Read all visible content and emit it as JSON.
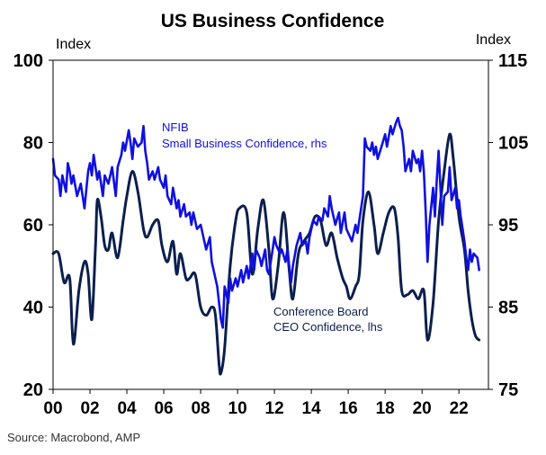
{
  "chart_data": {
    "type": "line",
    "title": "US Business Confidence",
    "left_axis": {
      "label": "Index",
      "range": [
        20,
        100
      ],
      "ticks": [
        20,
        40,
        60,
        80,
        100
      ]
    },
    "right_axis": {
      "label": "Index",
      "range": [
        75,
        115
      ],
      "ticks": [
        75,
        85,
        95,
        105,
        115
      ]
    },
    "x_axis": {
      "range": [
        2000,
        2023.6
      ],
      "ticks": [
        {
          "x": 2000,
          "label": "00"
        },
        {
          "x": 2002,
          "label": "02"
        },
        {
          "x": 2004,
          "label": "04"
        },
        {
          "x": 2006,
          "label": "06"
        },
        {
          "x": 2008,
          "label": "08"
        },
        {
          "x": 2010,
          "label": "10"
        },
        {
          "x": 2012,
          "label": "12"
        },
        {
          "x": 2014,
          "label": "14"
        },
        {
          "x": 2016,
          "label": "16"
        },
        {
          "x": 2018,
          "label": "18"
        },
        {
          "x": 2020,
          "label": "20"
        },
        {
          "x": 2022,
          "label": "22"
        }
      ]
    },
    "grid": false,
    "series": [
      {
        "name": "Conference Board CEO Confidence, lhs",
        "label_lines": [
          "Conference Board",
          "CEO Confidence, lhs"
        ],
        "axis": "left",
        "color": "#0b1f4d",
        "points": [
          [
            2000.0,
            53
          ],
          [
            2000.3,
            53
          ],
          [
            2000.6,
            46
          ],
          [
            2000.9,
            47
          ],
          [
            2001.1,
            31
          ],
          [
            2001.4,
            44
          ],
          [
            2001.7,
            51
          ],
          [
            2001.9,
            48
          ],
          [
            2002.1,
            37
          ],
          [
            2002.3,
            55
          ],
          [
            2002.4,
            66
          ],
          [
            2002.6,
            62
          ],
          [
            2002.8,
            55
          ],
          [
            2003.0,
            54
          ],
          [
            2003.2,
            58
          ],
          [
            2003.5,
            52
          ],
          [
            2003.8,
            61
          ],
          [
            2004.0,
            67
          ],
          [
            2004.3,
            73
          ],
          [
            2004.6,
            68
          ],
          [
            2004.9,
            59
          ],
          [
            2005.1,
            57
          ],
          [
            2005.4,
            60
          ],
          [
            2005.7,
            61
          ],
          [
            2005.9,
            55
          ],
          [
            2006.2,
            51
          ],
          [
            2006.5,
            56
          ],
          [
            2006.7,
            48
          ],
          [
            2006.9,
            53
          ],
          [
            2007.2,
            47
          ],
          [
            2007.4,
            47
          ],
          [
            2007.7,
            48
          ],
          [
            2008.0,
            40
          ],
          [
            2008.3,
            38
          ],
          [
            2008.6,
            40
          ],
          [
            2008.8,
            38
          ],
          [
            2009.0,
            26
          ],
          [
            2009.1,
            24
          ],
          [
            2009.3,
            30
          ],
          [
            2009.6,
            50
          ],
          [
            2009.9,
            61
          ],
          [
            2010.1,
            64
          ],
          [
            2010.5,
            63
          ],
          [
            2010.8,
            48
          ],
          [
            2011.1,
            59
          ],
          [
            2011.4,
            66
          ],
          [
            2011.7,
            54
          ],
          [
            2011.9,
            42
          ],
          [
            2012.2,
            50
          ],
          [
            2012.5,
            63
          ],
          [
            2012.8,
            49
          ],
          [
            2013.0,
            42
          ],
          [
            2013.3,
            53
          ],
          [
            2013.6,
            56
          ],
          [
            2013.9,
            58
          ],
          [
            2014.2,
            62
          ],
          [
            2014.5,
            61
          ],
          [
            2014.8,
            55
          ],
          [
            2015.1,
            58
          ],
          [
            2015.4,
            52
          ],
          [
            2015.7,
            47
          ],
          [
            2015.9,
            45
          ],
          [
            2016.1,
            42
          ],
          [
            2016.4,
            45
          ],
          [
            2016.6,
            48
          ],
          [
            2016.8,
            61
          ],
          [
            2017.1,
            68
          ],
          [
            2017.4,
            60
          ],
          [
            2017.6,
            53
          ],
          [
            2017.9,
            58
          ],
          [
            2018.2,
            63
          ],
          [
            2018.5,
            64
          ],
          [
            2018.7,
            57
          ],
          [
            2018.9,
            44
          ],
          [
            2019.2,
            43
          ],
          [
            2019.5,
            44
          ],
          [
            2019.8,
            42
          ],
          [
            2020.1,
            44
          ],
          [
            2020.3,
            32
          ],
          [
            2020.6,
            41
          ],
          [
            2020.9,
            61
          ],
          [
            2021.2,
            73
          ],
          [
            2021.5,
            82
          ],
          [
            2021.7,
            76
          ],
          [
            2022.0,
            62
          ],
          [
            2022.3,
            54
          ],
          [
            2022.5,
            44
          ],
          [
            2022.7,
            37
          ],
          [
            2022.9,
            33
          ],
          [
            2023.1,
            32
          ]
        ]
      },
      {
        "name": "NFIB Small Business Confidence, rhs",
        "label_lines": [
          "NFIB",
          "Small Business Confidence, rhs"
        ],
        "axis": "right",
        "color": "#1010e0",
        "points": [
          [
            2000.0,
            103.0
          ],
          [
            2000.1,
            101.0
          ],
          [
            2000.3,
            100.5
          ],
          [
            2000.4,
            98.5
          ],
          [
            2000.5,
            101.0
          ],
          [
            2000.7,
            99.0
          ],
          [
            2000.8,
            102.5
          ],
          [
            2000.9,
            101.5
          ],
          [
            2001.0,
            100.0
          ],
          [
            2001.1,
            101.0
          ],
          [
            2001.3,
            98.5
          ],
          [
            2001.5,
            100.0
          ],
          [
            2001.7,
            97.0
          ],
          [
            2001.9,
            101.5
          ],
          [
            2002.0,
            102.5
          ],
          [
            2002.1,
            101.0
          ],
          [
            2002.2,
            103.5
          ],
          [
            2002.4,
            100.5
          ],
          [
            2002.5,
            101.5
          ],
          [
            2002.7,
            98.5
          ],
          [
            2002.8,
            101.0
          ],
          [
            2003.0,
            100.0
          ],
          [
            2003.2,
            102.0
          ],
          [
            2003.4,
            98.5
          ],
          [
            2003.5,
            102.0
          ],
          [
            2003.7,
            103.5
          ],
          [
            2003.8,
            105.0
          ],
          [
            2003.9,
            104.0
          ],
          [
            2004.1,
            106.5
          ],
          [
            2004.2,
            105.0
          ],
          [
            2004.3,
            103.0
          ],
          [
            2004.4,
            105.5
          ],
          [
            2004.6,
            104.5
          ],
          [
            2004.8,
            105.0
          ],
          [
            2004.9,
            107.0
          ],
          [
            2005.0,
            104.0
          ],
          [
            2005.1,
            102.5
          ],
          [
            2005.2,
            100.5
          ],
          [
            2005.4,
            101.5
          ],
          [
            2005.5,
            100.5
          ],
          [
            2005.7,
            102.0
          ],
          [
            2005.8,
            100.5
          ],
          [
            2006.0,
            99.5
          ],
          [
            2006.1,
            101.0
          ],
          [
            2006.2,
            98.5
          ],
          [
            2006.4,
            97.5
          ],
          [
            2006.5,
            99.5
          ],
          [
            2006.7,
            97.0
          ],
          [
            2006.8,
            98.0
          ],
          [
            2006.9,
            96.0
          ],
          [
            2007.1,
            97.5
          ],
          [
            2007.2,
            96.0
          ],
          [
            2007.4,
            96.5
          ],
          [
            2007.5,
            95.0
          ],
          [
            2007.6,
            96.5
          ],
          [
            2007.8,
            94.5
          ],
          [
            2008.0,
            95.0
          ],
          [
            2008.1,
            94.0
          ],
          [
            2008.3,
            92.0
          ],
          [
            2008.5,
            93.5
          ],
          [
            2008.6,
            90.5
          ],
          [
            2008.8,
            88.5
          ],
          [
            2008.9,
            87.5
          ],
          [
            2009.1,
            83.5
          ],
          [
            2009.2,
            82.5
          ],
          [
            2009.3,
            87.5
          ],
          [
            2009.5,
            85.5
          ],
          [
            2009.6,
            88.5
          ],
          [
            2009.7,
            87.0
          ],
          [
            2009.9,
            88.5
          ],
          [
            2010.0,
            87.5
          ],
          [
            2010.2,
            89.5
          ],
          [
            2010.3,
            88.0
          ],
          [
            2010.5,
            90.0
          ],
          [
            2010.6,
            88.5
          ],
          [
            2010.8,
            91.5
          ],
          [
            2010.9,
            89.5
          ],
          [
            2011.0,
            92.0
          ],
          [
            2011.2,
            91.0
          ],
          [
            2011.3,
            90.0
          ],
          [
            2011.5,
            92.0
          ],
          [
            2011.6,
            89.5
          ],
          [
            2011.7,
            89.0
          ],
          [
            2011.9,
            92.0
          ],
          [
            2012.0,
            93.5
          ],
          [
            2012.1,
            92.5
          ],
          [
            2012.3,
            91.5
          ],
          [
            2012.4,
            92.0
          ],
          [
            2012.6,
            90.5
          ],
          [
            2012.7,
            92.0
          ],
          [
            2012.9,
            88.0
          ],
          [
            2013.0,
            90.0
          ],
          [
            2013.2,
            92.5
          ],
          [
            2013.4,
            94.0
          ],
          [
            2013.5,
            92.5
          ],
          [
            2013.7,
            93.0
          ],
          [
            2013.8,
            91.5
          ],
          [
            2013.9,
            93.5
          ],
          [
            2014.1,
            95.5
          ],
          [
            2014.3,
            95.0
          ],
          [
            2014.4,
            96.0
          ],
          [
            2014.6,
            95.5
          ],
          [
            2014.7,
            97.0
          ],
          [
            2014.9,
            96.0
          ],
          [
            2015.0,
            98.5
          ],
          [
            2015.1,
            97.0
          ],
          [
            2015.3,
            95.0
          ],
          [
            2015.5,
            96.5
          ],
          [
            2015.6,
            94.0
          ],
          [
            2015.8,
            96.5
          ],
          [
            2015.9,
            94.5
          ],
          [
            2016.1,
            93.5
          ],
          [
            2016.2,
            93.0
          ],
          [
            2016.4,
            95.0
          ],
          [
            2016.5,
            94.0
          ],
          [
            2016.6,
            95.5
          ],
          [
            2016.8,
            98.5
          ],
          [
            2016.9,
            105.5
          ],
          [
            2017.0,
            104.5
          ],
          [
            2017.2,
            104.0
          ],
          [
            2017.3,
            105.0
          ],
          [
            2017.4,
            103.5
          ],
          [
            2017.5,
            104.5
          ],
          [
            2017.6,
            103.0
          ],
          [
            2017.8,
            104.5
          ],
          [
            2018.0,
            106.0
          ],
          [
            2018.1,
            104.5
          ],
          [
            2018.3,
            107.0
          ],
          [
            2018.4,
            106.0
          ],
          [
            2018.6,
            107.5
          ],
          [
            2018.7,
            108.0
          ],
          [
            2018.8,
            107.0
          ],
          [
            2018.9,
            106.5
          ],
          [
            2019.0,
            104.5
          ],
          [
            2019.1,
            101.5
          ],
          [
            2019.3,
            103.0
          ],
          [
            2019.4,
            101.5
          ],
          [
            2019.5,
            104.0
          ],
          [
            2019.7,
            102.5
          ],
          [
            2019.8,
            103.0
          ],
          [
            2019.9,
            101.5
          ],
          [
            2020.0,
            104.0
          ],
          [
            2020.1,
            101.5
          ],
          [
            2020.2,
            96.5
          ],
          [
            2020.3,
            90.5
          ],
          [
            2020.4,
            95.0
          ],
          [
            2020.6,
            99.5
          ],
          [
            2020.7,
            96.0
          ],
          [
            2020.8,
            100.5
          ],
          [
            2020.9,
            104.0
          ],
          [
            2021.1,
            95.0
          ],
          [
            2021.2,
            98.5
          ],
          [
            2021.4,
            99.0
          ],
          [
            2021.5,
            102.0
          ],
          [
            2021.6,
            98.0
          ],
          [
            2021.8,
            99.5
          ],
          [
            2021.9,
            97.0
          ],
          [
            2022.0,
            98.0
          ],
          [
            2022.1,
            96.0
          ],
          [
            2022.2,
            94.5
          ],
          [
            2022.3,
            93.0
          ],
          [
            2022.4,
            91.0
          ],
          [
            2022.5,
            89.5
          ],
          [
            2022.6,
            92.0
          ],
          [
            2022.7,
            90.5
          ],
          [
            2022.8,
            91.5
          ],
          [
            2023.0,
            91.0
          ],
          [
            2023.1,
            89.5
          ]
        ]
      }
    ],
    "source": "Source: Macrobond, AMP"
  }
}
